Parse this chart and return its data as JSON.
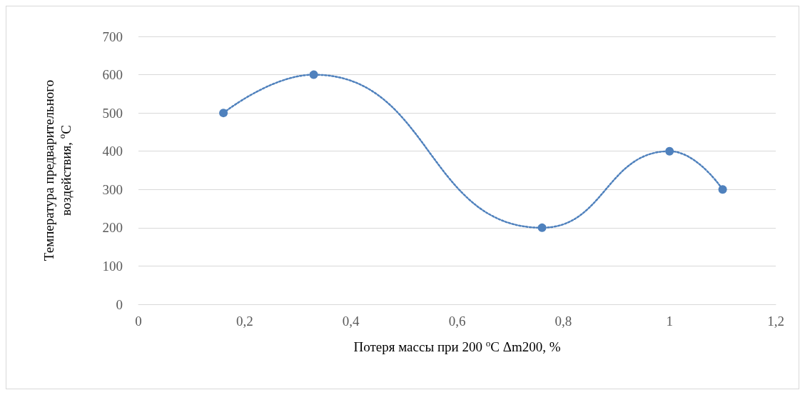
{
  "chart_data": {
    "type": "line",
    "xlabel": "Потеря массы при 200 $^{o}$C Δm200, %",
    "ylabel": "Температура предварительного воздействия, $^{o}$C",
    "x": [
      0.16,
      0.33,
      0.76,
      1.0,
      1.1
    ],
    "series": [
      {
        "color": "#4f81bd",
        "values": [
          500,
          600,
          200,
          400,
          300
        ]
      }
    ],
    "xlim": [
      0,
      1.2
    ],
    "xticks": [
      0,
      {
        "value": 0.2,
        "label": "0,2"
      },
      {
        "value": 0.4,
        "label": "0,4"
      },
      {
        "value": 0.6,
        "label": "0,6"
      },
      {
        "value": 0.8,
        "label": "0,8"
      },
      1,
      {
        "value": 1.2,
        "label": "1,2"
      }
    ],
    "ylim": [
      0,
      700
    ],
    "yticks": [
      0,
      100,
      200,
      300,
      400,
      500,
      600,
      700
    ],
    "grid": "y",
    "marker": "circle",
    "line_style": "dotted"
  }
}
